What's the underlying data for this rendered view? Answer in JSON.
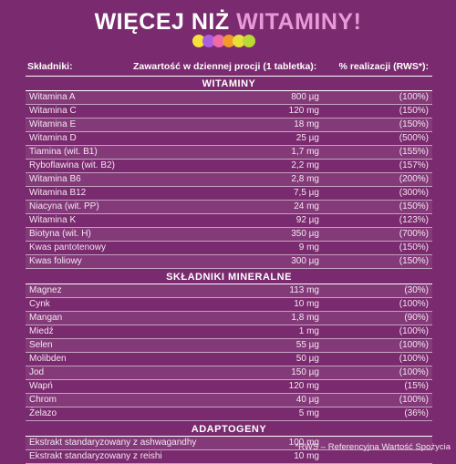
{
  "title": {
    "main": "WIĘCEJ NIŻ",
    "accent": "WITAMINY!"
  },
  "dots": [
    "#f5e13a",
    "#a95fe0",
    "#f06aa8",
    "#f39a2a",
    "#e8e03a",
    "#b9d937"
  ],
  "header": {
    "name": "Składniki:",
    "amount": "Zawartość w dziennej procji (1 tabletka):",
    "rws": "% realizacji (RWS*):"
  },
  "sections": {
    "vitamins": "WITAMINY",
    "minerals": "SKŁADNIKI  MINERALNE",
    "adaptogens": "ADAPTOGENY"
  },
  "vitamins": [
    {
      "name": "Witamina A",
      "amount": "800 µg",
      "rws": "(100%)"
    },
    {
      "name": "Witamina C",
      "amount": "120 mg",
      "rws": "(150%)"
    },
    {
      "name": "Witamina E",
      "amount": "18 mg",
      "rws": "(150%)"
    },
    {
      "name": "Witamina D",
      "amount": "25 µg",
      "rws": "(500%)"
    },
    {
      "name": "Tiamina (wit. B1)",
      "amount": "1,7 mg",
      "rws": "(155%)"
    },
    {
      "name": "Ryboflawina (wit. B2)",
      "amount": "2,2 mg",
      "rws": "(157%)"
    },
    {
      "name": "Witamina B6",
      "amount": "2,8 mg",
      "rws": "(200%)"
    },
    {
      "name": "Witamina B12",
      "amount": "7,5 µg",
      "rws": "(300%)"
    },
    {
      "name": "Niacyna (wit. PP)",
      "amount": "24 mg",
      "rws": "(150%)"
    },
    {
      "name": "Witamina K",
      "amount": "92 µg",
      "rws": "(123%)"
    },
    {
      "name": "Biotyna (wit. H)",
      "amount": "350 µg",
      "rws": "(700%)"
    },
    {
      "name": "Kwas pantotenowy",
      "amount": "9 mg",
      "rws": "(150%)"
    },
    {
      "name": "Kwas foliowy",
      "amount": "300 µg",
      "rws": "(150%)"
    }
  ],
  "minerals": [
    {
      "name": "Magnez",
      "amount": "113 mg",
      "rws": "(30%)"
    },
    {
      "name": "Cynk",
      "amount": "10 mg",
      "rws": "(100%)"
    },
    {
      "name": "Mangan",
      "amount": "1,8 mg",
      "rws": "(90%)"
    },
    {
      "name": "Miedź",
      "amount": "1 mg",
      "rws": "(100%)"
    },
    {
      "name": "Selen",
      "amount": "55 µg",
      "rws": "(100%)"
    },
    {
      "name": "Molibden",
      "amount": "50 µg",
      "rws": "(100%)"
    },
    {
      "name": "Jod",
      "amount": "150 µg",
      "rws": "(100%)"
    },
    {
      "name": "Wapń",
      "amount": "120 mg",
      "rws": "(15%)"
    },
    {
      "name": "Chrom",
      "amount": "40 µg",
      "rws": "(100%)"
    },
    {
      "name": "Żelazo",
      "amount": "5 mg",
      "rws": "(36%)"
    }
  ],
  "adaptogens": [
    {
      "name": "Ekstrakt standaryzowany z ashwagandhy",
      "amount": "100 mg",
      "rws": ""
    },
    {
      "name": "Ekstrakt standaryzowany z reishi",
      "amount": "10 mg",
      "rws": ""
    }
  ],
  "footnote": "*RWS – Referencyjna Wartość Spożycia"
}
